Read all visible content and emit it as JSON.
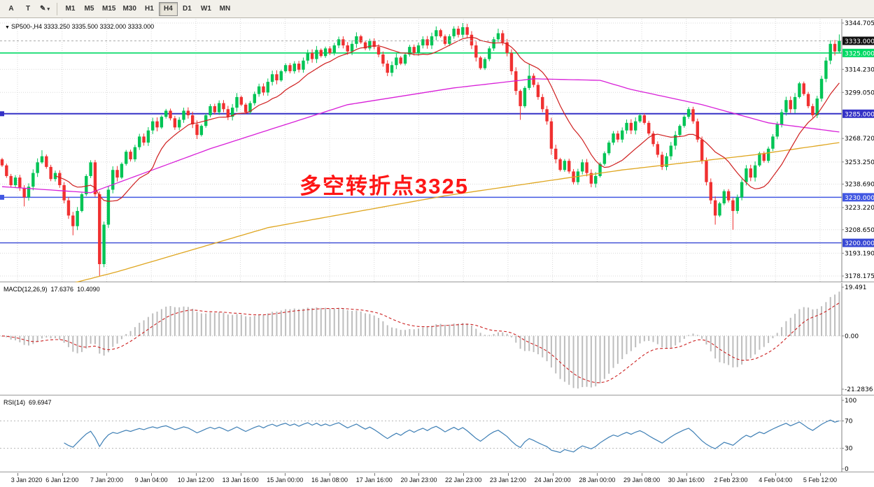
{
  "toolbar": {
    "tool_buttons": [
      {
        "name": "annotation-tool-button",
        "label": "A",
        "has_dropdown": false
      },
      {
        "name": "text-tool-button",
        "label": "T",
        "has_dropdown": false
      },
      {
        "name": "draw-tool-button",
        "label": "✎",
        "has_dropdown": true
      }
    ],
    "timeframes": [
      "M1",
      "M5",
      "M15",
      "M30",
      "H1",
      "H4",
      "D1",
      "W1",
      "MN"
    ],
    "active_timeframe": "H4"
  },
  "main_chart": {
    "symbol_info": "SP500-,H4 3333.250 3335.500 3332.000 3333.000",
    "annotation_text": "多空转折点3325",
    "current_price": 3333.0,
    "current_price_label": "3333.000",
    "current_price_box_color": "#111111",
    "price_max": 3344.705,
    "price_min": 3178.175,
    "axis_labels": [
      "3344.705",
      "3314.230",
      "3299.050",
      "3268.720",
      "3253.250",
      "3238.690",
      "3223.220",
      "3208.650",
      "3193.190",
      "3178.175"
    ],
    "hlines": [
      {
        "price": 3325.0,
        "label": "3325.000",
        "color": "#00d964",
        "width": 1.6,
        "marker": false
      },
      {
        "price": 3285.0,
        "label": "3285.000",
        "color": "#3431c6",
        "width": 2,
        "marker": true
      },
      {
        "price": 3230.0,
        "label": "3230.000",
        "color": "#4157e2",
        "width": 1.4,
        "marker": true
      },
      {
        "price": 3200.0,
        "label": "3200.000",
        "color": "#3848d4",
        "width": 1.4,
        "marker": false
      }
    ]
  },
  "macd_panel": {
    "label": "MACD(12,26,9)",
    "value_main": "17.6376",
    "value_signal": "10.4090",
    "axis_labels": [
      {
        "v": 19.491,
        "t": "19.491"
      },
      {
        "v": 0,
        "t": "0.00"
      },
      {
        "v": -21.2836,
        "t": "-21.2836"
      }
    ]
  },
  "rsi_panel": {
    "label": "RSI(14)",
    "value": "69.6947",
    "levels": [
      70,
      30
    ],
    "axis_labels": [
      {
        "v": 100,
        "t": "100"
      },
      {
        "v": 70,
        "t": "70"
      },
      {
        "v": 30,
        "t": "30"
      },
      {
        "v": 0,
        "t": "0"
      }
    ]
  },
  "time_axis": {
    "labels": [
      "3 Jan 2020",
      "6 Jan 12:00",
      "7 Jan 20:00",
      "9 Jan 04:00",
      "10 Jan 12:00",
      "13 Jan 16:00",
      "15 Jan 00:00",
      "16 Jan 08:00",
      "17 Jan 16:00",
      "20 Jan 23:00",
      "22 Jan 23:00",
      "23 Jan 12:00",
      "24 Jan 20:00",
      "28 Jan 00:00",
      "29 Jan 08:00",
      "30 Jan 16:00",
      "2 Feb 23:00",
      "4 Feb 04:00",
      "5 Feb 12:00"
    ]
  },
  "chart_data": {
    "type": "candlestick",
    "symbol": "SP500-",
    "timeframe": "H4",
    "title": "SP500- H4 with MACD(12,26,9) and RSI(14)",
    "ylim": [
      3178.175,
      3344.705
    ],
    "closes": [
      3251,
      3244,
      3238,
      3243,
      3236,
      3230,
      3237,
      3246,
      3253,
      3257,
      3250,
      3242,
      3246,
      3238,
      3228,
      3218,
      3211,
      3221,
      3232,
      3244,
      3253,
      3232,
      3186,
      3212,
      3235,
      3248,
      3243,
      3252,
      3260,
      3255,
      3263,
      3270,
      3266,
      3274,
      3280,
      3276,
      3283,
      3287,
      3282,
      3276,
      3281,
      3287,
      3284,
      3278,
      3271,
      3277,
      3284,
      3290,
      3286,
      3292,
      3288,
      3283,
      3289,
      3296,
      3291,
      3286,
      3292,
      3298,
      3303,
      3299,
      3306,
      3311,
      3307,
      3313,
      3317,
      3313,
      3318,
      3314,
      3320,
      3325,
      3321,
      3327,
      3323,
      3328,
      3325,
      3330,
      3334,
      3330,
      3326,
      3331,
      3336,
      3332,
      3328,
      3333,
      3329,
      3324,
      3318,
      3312,
      3317,
      3322,
      3318,
      3324,
      3329,
      3325,
      3330,
      3334,
      3330,
      3336,
      3340,
      3336,
      3331,
      3336,
      3341,
      3337,
      3342,
      3337,
      3330,
      3322,
      3315,
      3321,
      3328,
      3334,
      3338,
      3332,
      3325,
      3313,
      3300,
      3290,
      3302,
      3310,
      3304,
      3296,
      3288,
      3280,
      3262,
      3255,
      3248,
      3254,
      3247,
      3240,
      3247,
      3253,
      3246,
      3239,
      3244,
      3252,
      3259,
      3266,
      3272,
      3268,
      3274,
      3279,
      3274,
      3280,
      3284,
      3279,
      3272,
      3265,
      3258,
      3250,
      3257,
      3264,
      3271,
      3277,
      3283,
      3288,
      3280,
      3268,
      3254,
      3240,
      3228,
      3218,
      3226,
      3234,
      3228,
      3221,
      3230,
      3240,
      3249,
      3243,
      3251,
      3259,
      3254,
      3262,
      3270,
      3278,
      3286,
      3294,
      3288,
      3296,
      3305,
      3298,
      3290,
      3284,
      3295,
      3308,
      3320,
      3331,
      3326,
      3333
    ],
    "low_overrides": {
      "5": 3224,
      "16": 3205,
      "22": 3178.2,
      "117": 3281,
      "124": 3258,
      "161": 3212,
      "165": 3208.6
    },
    "high_overrides": {
      "9": 3261,
      "98": 3342.5,
      "104": 3344.7,
      "112": 3341,
      "119": 3318,
      "189": 3337.2
    },
    "ma_fast_period": 13,
    "ma_magenta_anchors": [
      [
        0,
        3237
      ],
      [
        20,
        3233
      ],
      [
        47,
        3262
      ],
      [
        78,
        3291
      ],
      [
        102,
        3302
      ],
      [
        120,
        3308
      ],
      [
        135,
        3307
      ],
      [
        142,
        3301
      ],
      [
        158,
        3291
      ],
      [
        173,
        3279
      ],
      [
        189,
        3273
      ]
    ],
    "ma_orange_anchors": [
      [
        14,
        3172
      ],
      [
        26,
        3181
      ],
      [
        60,
        3210
      ],
      [
        100,
        3231
      ],
      [
        140,
        3248
      ],
      [
        170,
        3258
      ],
      [
        189,
        3266
      ]
    ],
    "macd": {
      "fast": 12,
      "slow": 26,
      "signal": 9,
      "last_main": 17.6376,
      "last_signal": 10.409,
      "range": [
        -21.2836,
        19.491
      ]
    },
    "rsi": {
      "period": 14,
      "last": 69.6947,
      "range": [
        0,
        100
      ]
    },
    "colors": {
      "up": "#00c455",
      "down": "#f03030",
      "ma_fast": "#cf1f1f",
      "ma_magenta": "#d81fd8",
      "ma_orange": "#dfa620",
      "macd_hist": "#bdbdbd",
      "macd_signal": "#cc2020",
      "rsi": "#3e7fb5",
      "hline_green": "#00d964",
      "hline_blue": "#3431c6",
      "grid": "#d9d9d9"
    }
  }
}
